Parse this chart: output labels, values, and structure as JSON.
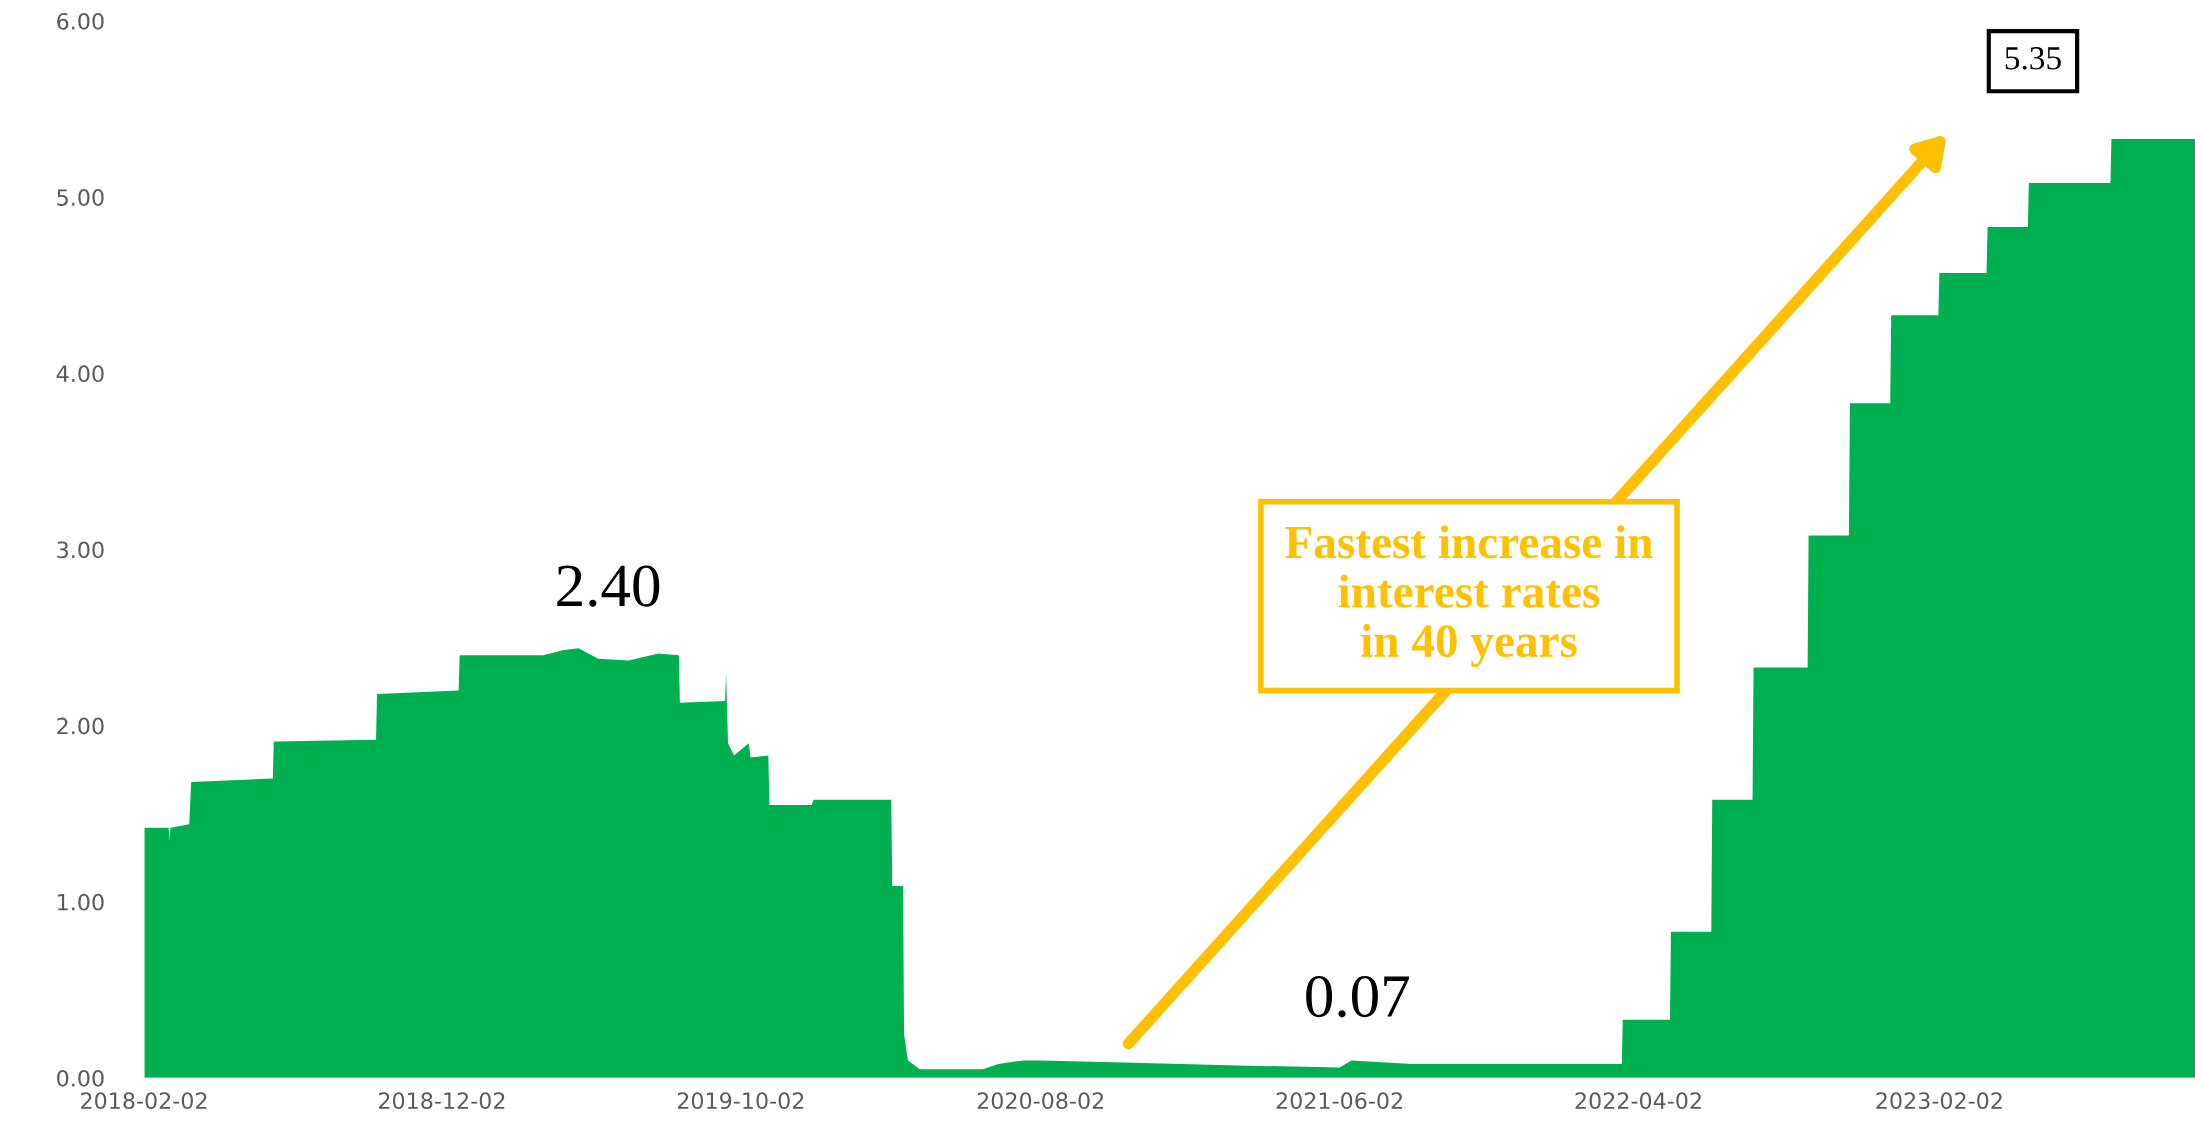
{
  "chart_data": {
    "type": "area",
    "x": [
      "2018-02-02",
      "2018-02-27",
      "2018-02-28",
      "2018-03-01",
      "2018-03-20",
      "2018-03-22",
      "2018-06-13",
      "2018-06-14",
      "2018-09-26",
      "2018-09-27",
      "2018-12-19",
      "2018-12-20",
      "2019-03-15",
      "2019-04-05",
      "2019-04-20",
      "2019-05-10",
      "2019-06-10",
      "2019-07-10",
      "2019-07-31",
      "2019-08-01",
      "2019-09-16",
      "2019-09-17",
      "2019-09-19",
      "2019-09-25",
      "2019-10-10",
      "2019-10-12",
      "2019-10-30",
      "2019-10-31",
      "2019-12-13",
      "2019-12-15",
      "2020-03-03",
      "2020-03-04",
      "2020-03-15",
      "2020-03-16",
      "2020-03-20",
      "2020-04-01",
      "2020-06-04",
      "2020-06-20",
      "2020-07-15",
      "2020-08-02",
      "2020-10-15",
      "2021-03-01",
      "2021-06-02",
      "2021-06-14",
      "2021-07-15",
      "2021-08-15",
      "2022-03-16",
      "2022-03-17",
      "2022-05-04",
      "2022-05-05",
      "2022-06-15",
      "2022-06-16",
      "2022-07-27",
      "2022-07-28",
      "2022-09-21",
      "2022-09-22",
      "2022-11-02",
      "2022-11-03",
      "2022-12-14",
      "2022-12-15",
      "2023-02-01",
      "2023-02-02",
      "2023-03-22",
      "2023-03-23",
      "2023-05-03",
      "2023-05-04",
      "2023-07-26",
      "2023-07-27",
      "2023-10-20"
    ],
    "series": [
      {
        "color": "#00b050",
        "values": [
          1.42,
          1.42,
          1.35,
          1.42,
          1.44,
          1.68,
          1.7,
          1.91,
          1.92,
          2.18,
          2.2,
          2.4,
          2.4,
          2.43,
          2.44,
          2.38,
          2.37,
          2.41,
          2.4,
          2.13,
          2.14,
          2.3,
          1.9,
          1.83,
          1.9,
          1.82,
          1.83,
          1.55,
          1.55,
          1.58,
          1.58,
          1.09,
          1.09,
          0.25,
          0.1,
          0.05,
          0.05,
          0.08,
          0.1,
          0.1,
          0.09,
          0.07,
          0.06,
          0.1,
          0.09,
          0.08,
          0.08,
          0.33,
          0.33,
          0.83,
          0.83,
          1.58,
          1.58,
          2.33,
          2.33,
          3.08,
          3.08,
          3.83,
          3.83,
          4.33,
          4.33,
          4.57,
          4.57,
          4.83,
          4.83,
          5.08,
          5.08,
          5.33,
          5.33
        ]
      }
    ],
    "xlim": [
      "2018-02-02",
      "2023-10-20"
    ],
    "xticks": [
      "2018-02-02",
      "2018-12-02",
      "2019-10-02",
      "2020-08-02",
      "2021-06-02",
      "2022-04-02",
      "2023-02-02"
    ],
    "ylim": [
      0,
      6
    ],
    "yticks": [
      {
        "value": 0,
        "label": "0.00"
      },
      {
        "value": 1,
        "label": "1.00"
      },
      {
        "value": 2,
        "label": "2.00"
      },
      {
        "value": 3,
        "label": "3.00"
      },
      {
        "value": 4,
        "label": "4.00"
      },
      {
        "value": 5,
        "label": "5.00"
      },
      {
        "value": 6,
        "label": "6.00"
      }
    ],
    "grid": false,
    "legend": false,
    "annotations": [
      {
        "text": "2.40",
        "x": "2019-05-20",
        "y": 2.4
      },
      {
        "text": "0.07",
        "x": "2021-06-20",
        "y": 0.07
      },
      "5.35",
      "Fastest increase in\ninterest rates\nin 40 years"
    ]
  }
}
